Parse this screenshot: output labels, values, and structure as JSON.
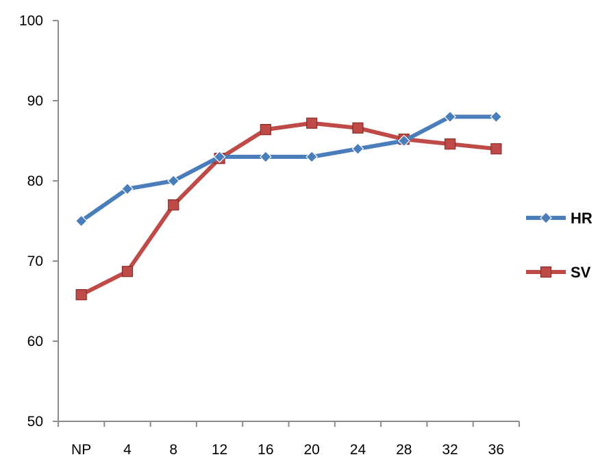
{
  "chart_data": {
    "type": "line",
    "title": "",
    "xlabel": "",
    "ylabel": "",
    "categories": [
      "NP",
      "4",
      "8",
      "12",
      "16",
      "20",
      "24",
      "28",
      "32",
      "36"
    ],
    "ylim": [
      50,
      100
    ],
    "yticks": [
      50,
      60,
      70,
      80,
      90,
      100
    ],
    "grid": false,
    "legend_position": "right",
    "series": [
      {
        "name": "HR",
        "color": "#4a7ebb",
        "marker": "diamond",
        "values": [
          75,
          79,
          80,
          83,
          83,
          83,
          84,
          85,
          88,
          88
        ]
      },
      {
        "name": "SV",
        "color": "#be4b48",
        "marker": "square",
        "values": [
          65.8,
          68.7,
          77,
          82.8,
          86.4,
          87.2,
          86.6,
          85.2,
          84.6,
          84
        ]
      }
    ]
  }
}
